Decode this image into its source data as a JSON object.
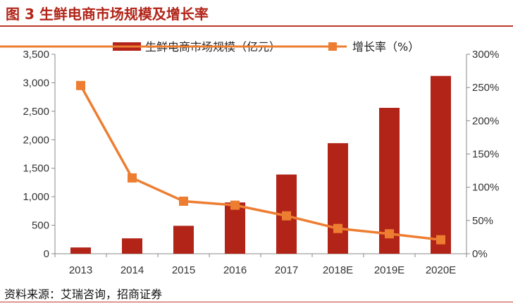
{
  "header": {
    "title": "图 3 生鲜电商市场规模及增长率"
  },
  "footer": {
    "source": "资料来源：艾瑞咨询，招商证券"
  },
  "colors": {
    "bar": "#b22418",
    "line": "#ed7d31",
    "title": "#b22418"
  },
  "chart_data": {
    "type": "bar+line",
    "categories": [
      "2013",
      "2014",
      "2015",
      "2016",
      "2017",
      "2018E",
      "2019E",
      "2020E"
    ],
    "series": [
      {
        "name": "生鲜电商市场规模（亿元）",
        "type": "bar",
        "axis": "left",
        "values": [
          110,
          270,
          490,
          900,
          1390,
          1940,
          2560,
          3120
        ]
      },
      {
        "name": "增长率（%）",
        "type": "line",
        "axis": "right",
        "values": [
          253,
          114,
          79,
          73,
          57,
          38,
          30,
          21
        ]
      }
    ],
    "y_left": {
      "range": [
        0,
        3500
      ],
      "ticks": [
        "0",
        "500",
        "1,000",
        "1,500",
        "2,000",
        "2,500",
        "3,000",
        "3,500"
      ]
    },
    "y_right": {
      "range": [
        0,
        300
      ],
      "ticks": [
        "0%",
        "50%",
        "100%",
        "150%",
        "200%",
        "250%",
        "300%"
      ]
    },
    "legend_position": "top",
    "grid": false
  }
}
